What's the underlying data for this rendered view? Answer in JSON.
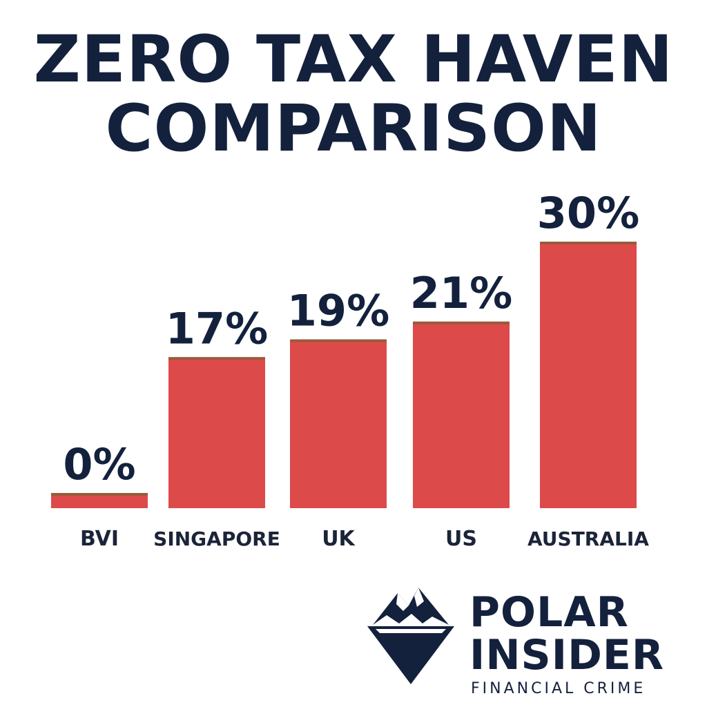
{
  "title": {
    "line1": "ZERO TAX HAVEN",
    "line2": "COMPARISON"
  },
  "colors": {
    "bar": "#dd4a4a",
    "bar_top": "#9a5a3a",
    "text": "#14213d"
  },
  "chart_data": {
    "type": "bar",
    "title": "ZERO TAX HAVEN COMPARISON",
    "categories": [
      "BVI",
      "SINGAPORE",
      "UK",
      "US",
      "AUSTRALIA"
    ],
    "values": [
      0,
      17,
      19,
      21,
      30
    ],
    "value_labels": [
      "0%",
      "17%",
      "19%",
      "21%",
      "30%"
    ],
    "xlabel": "",
    "ylabel": "",
    "ylim": [
      0,
      30
    ],
    "grid": false,
    "legend": "none"
  },
  "brand": {
    "line1": "POLAR",
    "line2": "INSIDER",
    "tagline": "FINANCIAL CRIME",
    "icon": "iceberg-icon"
  }
}
